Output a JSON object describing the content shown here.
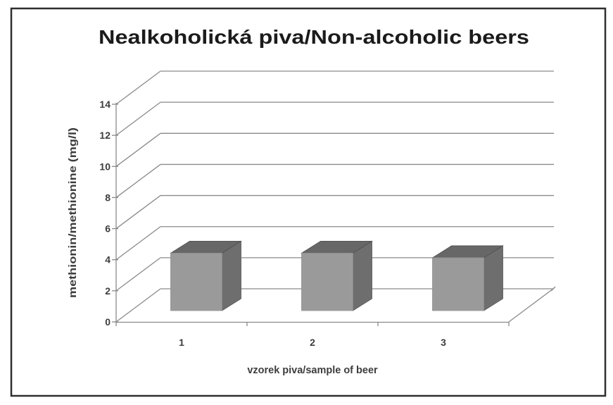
{
  "figure": {
    "background": "#ffffff",
    "border_color": "#2f2f2f"
  },
  "chart_data": {
    "type": "bar",
    "projection": "3d",
    "title": "Nealkoholická piva/Non-alcoholic beers",
    "xlabel": "vzorek piva/sample of beer",
    "ylabel": "methionin/methionine (mg/l)",
    "categories": [
      "1",
      "2",
      "3"
    ],
    "values": [
      3.7,
      3.7,
      3.4
    ],
    "ylim": [
      0,
      14
    ],
    "yticks": [
      0,
      2,
      4,
      6,
      8,
      10,
      12,
      14
    ],
    "grid": true,
    "legend": false,
    "colors": {
      "bar_front": "#9a9a9a",
      "bar_top": "#676767",
      "bar_side": "#6e6e6e",
      "gridline": "#8a8a8a",
      "axis_text": "#3d3d3d",
      "title_text": "#1b1b1b"
    }
  }
}
